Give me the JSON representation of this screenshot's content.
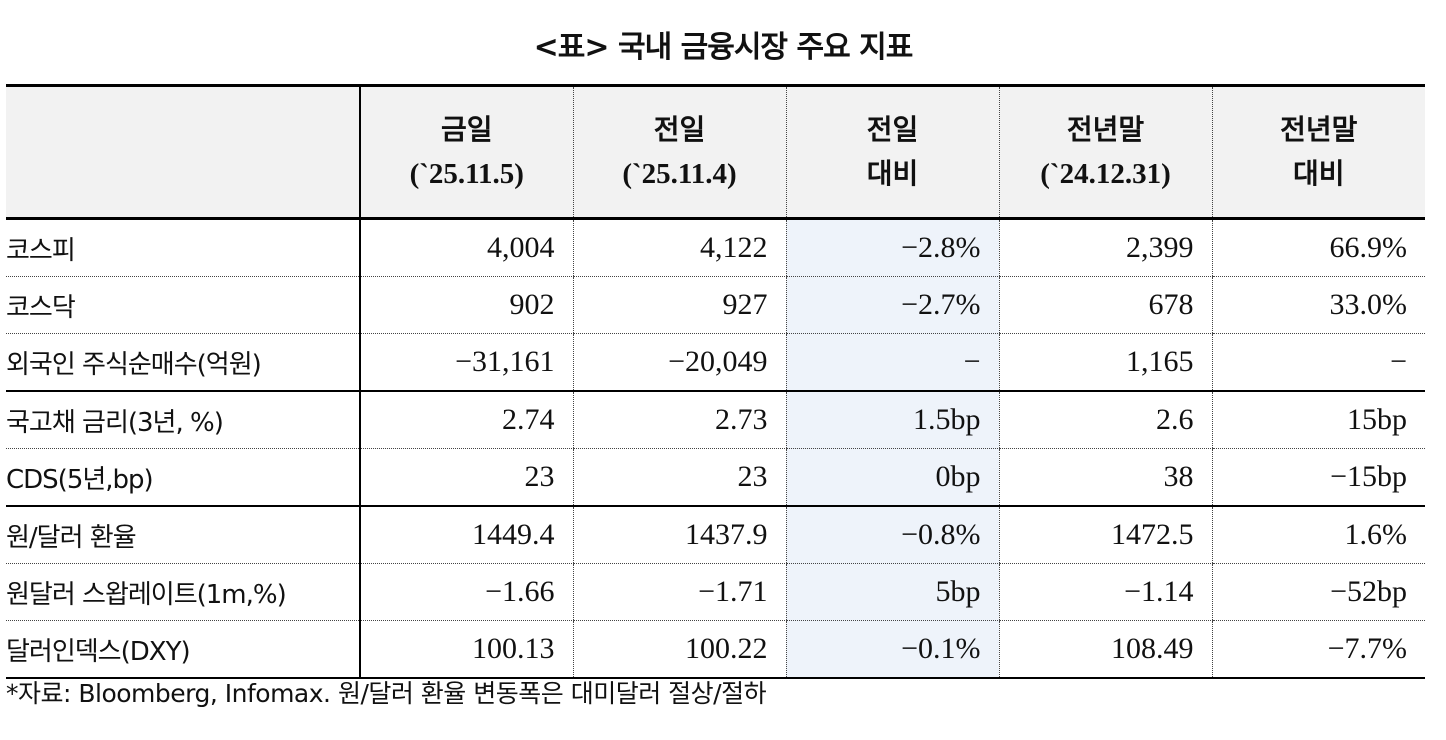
{
  "title": "<표> 국내 금융시장 주요 지표",
  "headers": [
    {
      "line1": "금일",
      "line2": "(`25.11.5)"
    },
    {
      "line1": "전일",
      "line2": "(`25.11.4)"
    },
    {
      "line1": "전일",
      "line2": "대비"
    },
    {
      "line1": "전년말",
      "line2": "(`24.12.31)"
    },
    {
      "line1": "전년말",
      "line2": "대비"
    }
  ],
  "rows": [
    {
      "label": "코스피",
      "v": [
        "4,004",
        "4,122",
        "−2.8%",
        "2,399",
        "66.9%"
      ]
    },
    {
      "label": "코스닥",
      "v": [
        "902",
        "927",
        "−2.7%",
        "678",
        "33.0%"
      ]
    },
    {
      "label": "외국인 주식순매수(억원)",
      "v": [
        "−31,161",
        "−20,049",
        "−",
        "1,165",
        "−"
      ]
    },
    {
      "label": "국고채 금리(3년, %)",
      "v": [
        "2.74",
        "2.73",
        "1.5bp",
        "2.6",
        "15bp"
      ]
    },
    {
      "label": "CDS(5년,bp)",
      "v": [
        "23",
        "23",
        "0bp",
        "38",
        "−15bp"
      ]
    },
    {
      "label": "원/달러 환율",
      "v": [
        "1449.4",
        "1437.9",
        "−0.8%",
        "1472.5",
        "1.6%"
      ]
    },
    {
      "label": "원달러 스왑레이트(1m,%)",
      "v": [
        "−1.66",
        "−1.71",
        "5bp",
        "−1.14",
        "−52bp"
      ]
    },
    {
      "label": "달러인덱스(DXY)",
      "v": [
        "100.13",
        "100.22",
        "−0.1%",
        "108.49",
        "−7.7%"
      ]
    }
  ],
  "footnote": "*자료: Bloomberg, Infomax. 원/달러 환율 변동폭은 대미달러 절상/절하",
  "colors": {
    "header_bg": "#f2f2f2",
    "highlight_column_bg": "#eef3fa"
  }
}
